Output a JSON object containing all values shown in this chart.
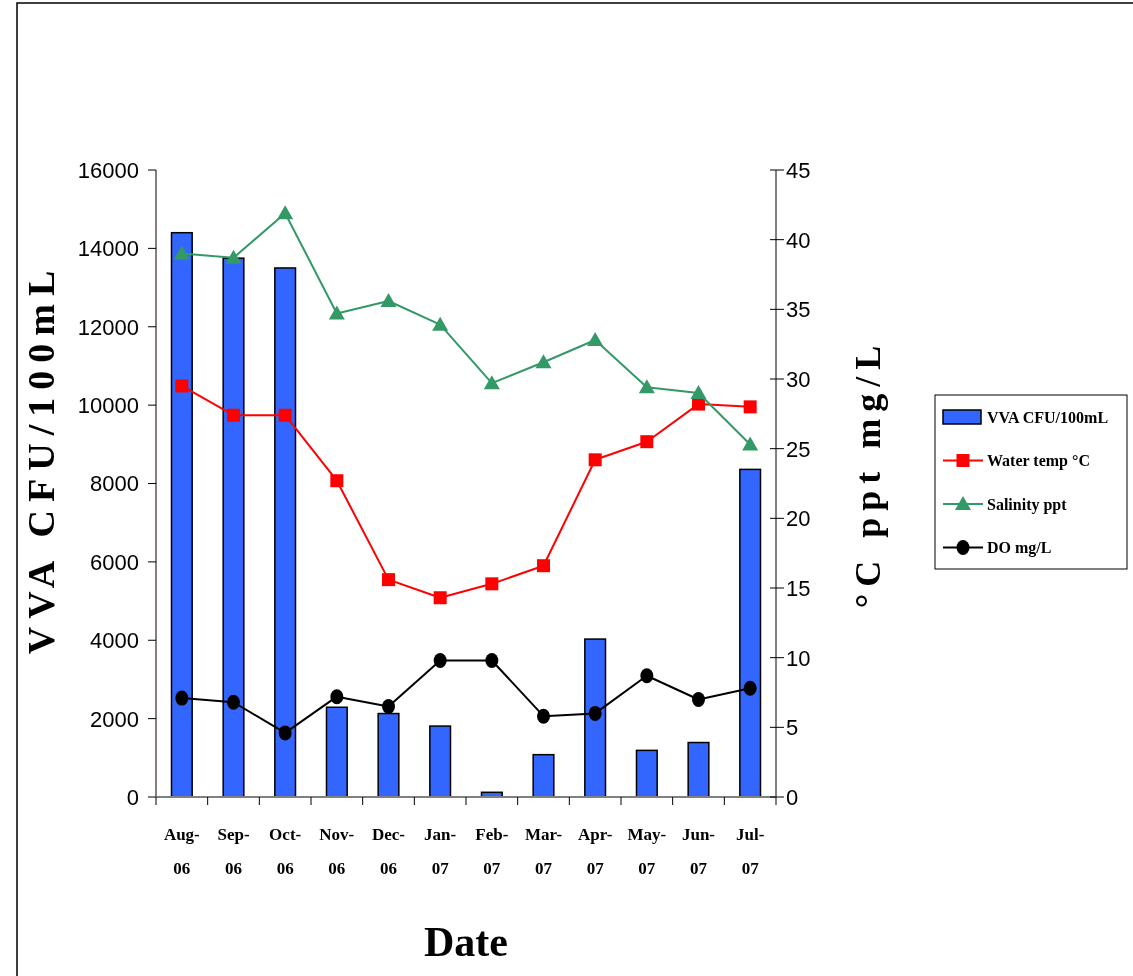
{
  "chart_data": {
    "type": "bar",
    "xlabel": "Date",
    "ylabel": "VVA CFU/100mL",
    "y2label": "°C ppt mg/L",
    "categories": [
      "Aug-06",
      "Sep-06",
      "Oct-06",
      "Nov-06",
      "Dec-06",
      "Jan-07",
      "Feb-07",
      "Mar-07",
      "Apr-07",
      "May-07",
      "Jun-07",
      "Jul-07"
    ],
    "ylim": [
      0,
      16000
    ],
    "yticks": [
      0,
      2000,
      4000,
      6000,
      8000,
      10000,
      12000,
      14000,
      16000
    ],
    "y2lim": [
      0,
      45
    ],
    "y2ticks": [
      0,
      5,
      10,
      15,
      20,
      25,
      30,
      35,
      40,
      45
    ],
    "legend": "right",
    "series": [
      {
        "name": "VVA CFU/100mL",
        "color": "#3366ff",
        "values": [
          14400,
          13750,
          13500,
          2290,
          2130,
          1810,
          120,
          1080,
          4030,
          1190,
          1390,
          8360
        ]
      },
      {
        "name": "Water temp °C",
        "type": "line",
        "axis": "y2",
        "color": "#ff0000",
        "marker": "square",
        "values": [
          29.5,
          27.4,
          27.4,
          22.7,
          15.6,
          14.3,
          15.3,
          16.6,
          24.2,
          25.5,
          28.2,
          28.0
        ]
      },
      {
        "name": "Salinity ppt",
        "type": "line",
        "axis": "y2",
        "color": "#339966",
        "marker": "triangle",
        "values": [
          39.0,
          38.7,
          41.9,
          34.7,
          35.6,
          33.9,
          29.7,
          31.2,
          32.8,
          29.4,
          29.0,
          25.3
        ]
      },
      {
        "name": "DO mg/L",
        "type": "line",
        "axis": "y2",
        "color": "#000000",
        "marker": "circle",
        "values": [
          7.1,
          6.8,
          4.6,
          7.2,
          6.5,
          9.8,
          9.8,
          5.8,
          6.0,
          8.7,
          7.0,
          7.8
        ]
      }
    ]
  }
}
